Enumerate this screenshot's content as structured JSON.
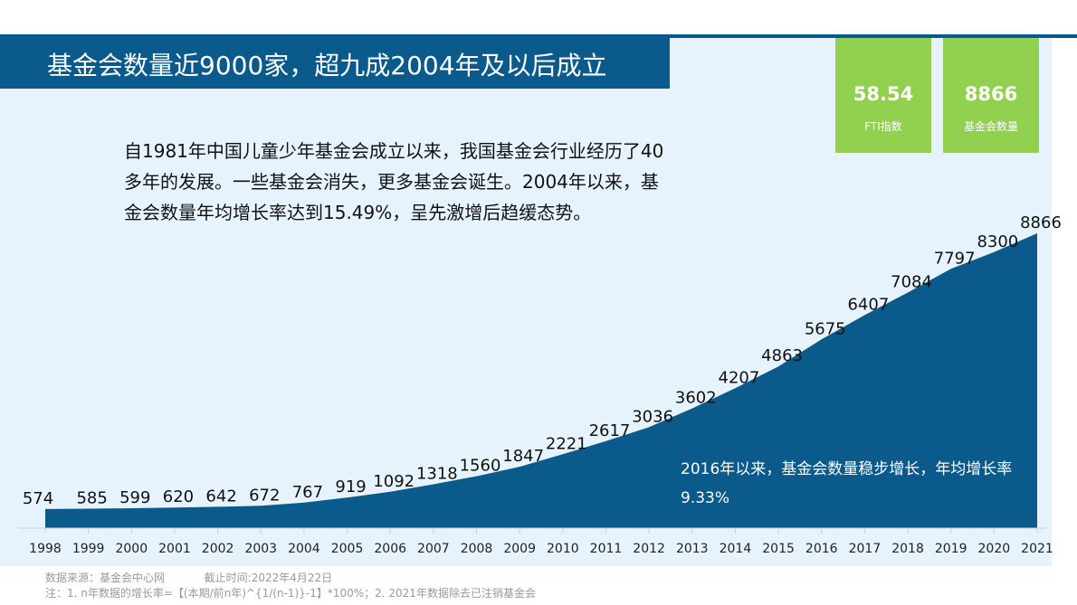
{
  "title": "基金会数量近9000家，超九成2004年及以后成立",
  "kpis": [
    {
      "value": "58.54",
      "label": "FTI指数"
    },
    {
      "value": "8866",
      "label": "基金会数量"
    }
  ],
  "description": "自1981年中国儿童少年基金会成立以来，我国基金会行业经历了40多年的发展。一些基金会消失，更多基金会诞生。2004年以来，基金会数量年均增长率达到15.49%，呈先激增后趋缓态势。",
  "annotation": "2016年以来，基金会数量稳步增长，年均增长率9.33%",
  "footer": {
    "source": "数据来源：基金会中心网",
    "cutoff": "截止时间:2022年4月22日",
    "note": "注：1. n年数据的增长率=【(本期/前n年)^{1/(n-1)}-1】*100%；2. 2021年数据除去已注销基金会"
  },
  "colors": {
    "area": "#0b5a8c",
    "kpi": "#92d050",
    "panel": "#e7f3fc"
  },
  "chart_data": {
    "type": "area",
    "categories": [
      "1998",
      "1999",
      "2000",
      "2001",
      "2002",
      "2003",
      "2004",
      "2005",
      "2006",
      "2007",
      "2008",
      "2009",
      "2010",
      "2011",
      "2012",
      "2013",
      "2014",
      "2015",
      "2016",
      "2017",
      "2018",
      "2019",
      "2020",
      "2021"
    ],
    "values": [
      574,
      585,
      599,
      620,
      642,
      672,
      767,
      919,
      1092,
      1318,
      1560,
      1847,
      2221,
      2617,
      3036,
      3602,
      4207,
      4863,
      5675,
      6407,
      7084,
      7797,
      8300,
      8866
    ],
    "ylim": [
      0,
      9000
    ],
    "grid": false,
    "legend": "none"
  }
}
